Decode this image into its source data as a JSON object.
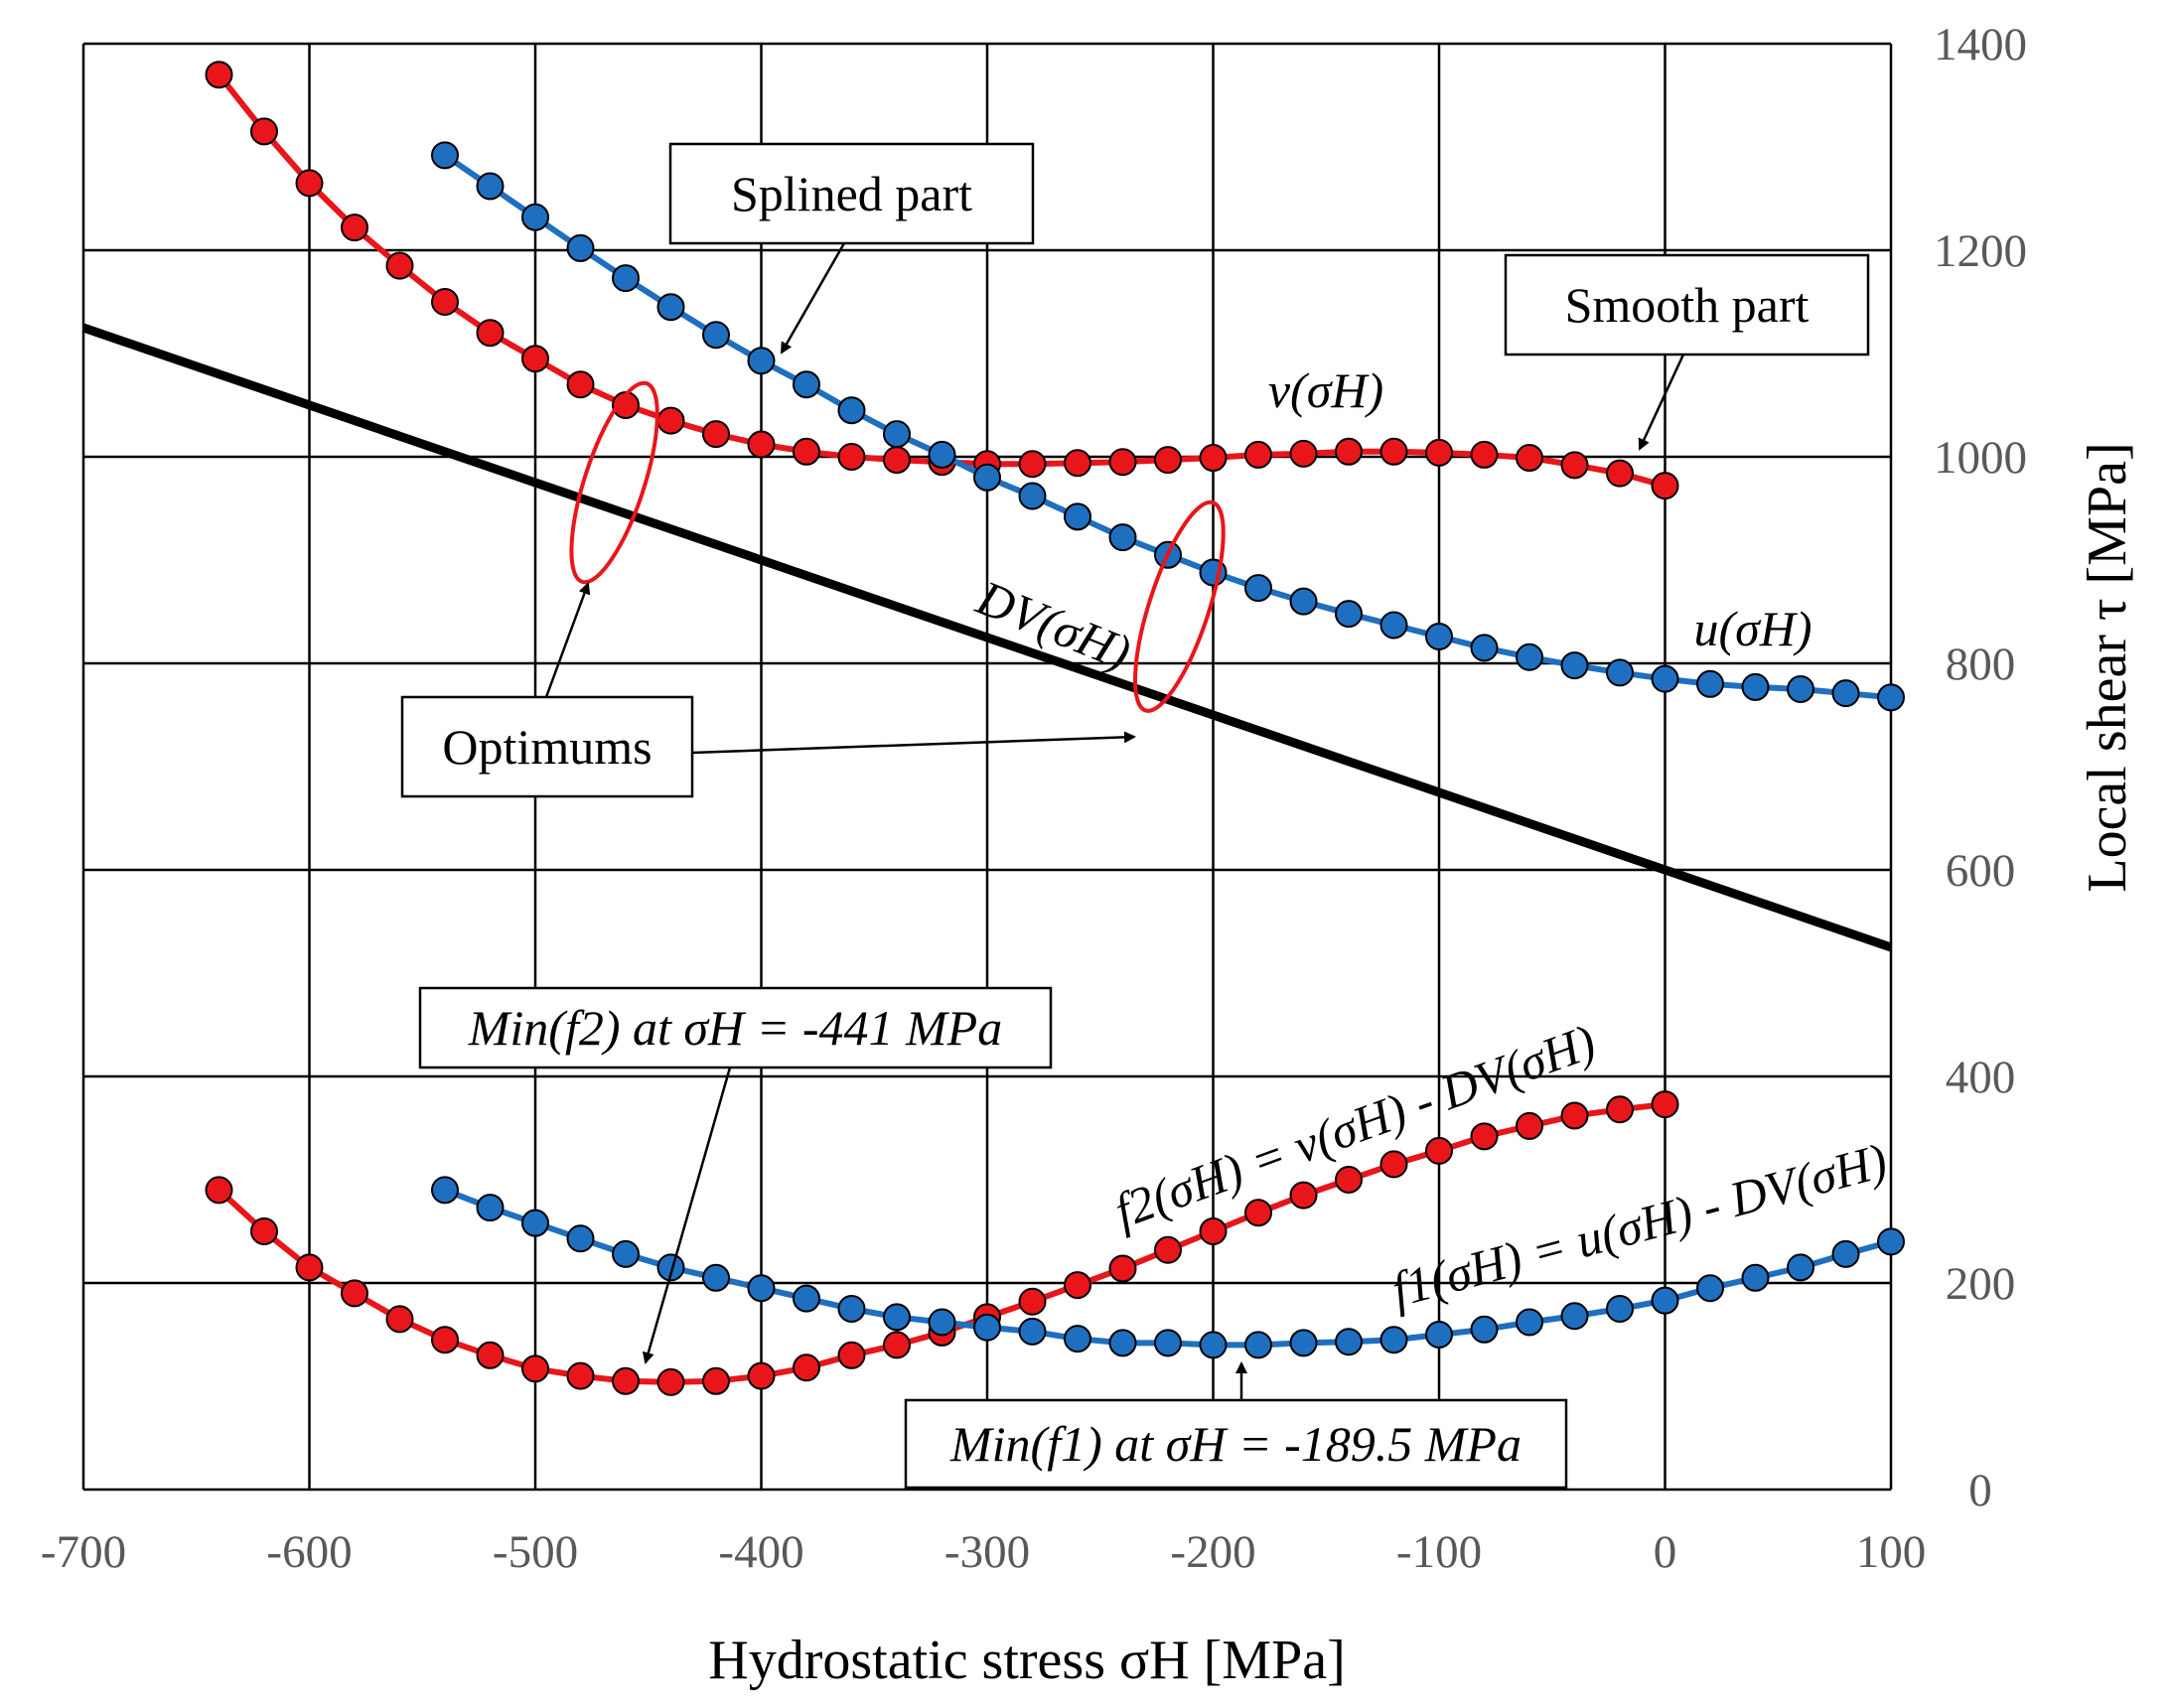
{
  "chart_data": {
    "type": "line",
    "xlabel": "Hydrostatic stress σH [MPa]",
    "ylabel": "Local shear τ [MPa]",
    "xlim": [
      -700,
      100
    ],
    "ylim": [
      0,
      1400
    ],
    "x_ticks": [
      "-700",
      "-600",
      "-500",
      "-400",
      "-300",
      "-200",
      "-100",
      "0",
      "100"
    ],
    "y_ticks": [
      "0",
      "200",
      "400",
      "600",
      "800",
      "1000",
      "1200",
      "1400"
    ],
    "grid": true,
    "colors": {
      "red": "#e8161b",
      "blue": "#1f6fc0",
      "line": "#000000",
      "ellipse": "#e8161b"
    },
    "series": [
      {
        "name": "v(σH)",
        "color": "red",
        "x": [
          -640,
          -620,
          -600,
          -580,
          -560,
          -540,
          -520,
          -500,
          -480,
          -460,
          -440,
          -420,
          -400,
          -380,
          -360,
          -340,
          -320,
          -300,
          -280,
          -260,
          -240,
          -220,
          -200,
          -180,
          -160,
          -140,
          -120,
          -100,
          -80,
          -60,
          -40,
          -20,
          0
        ],
        "y": [
          1370,
          1315,
          1265,
          1222,
          1185,
          1150,
          1120,
          1095,
          1070,
          1050,
          1035,
          1022,
          1012,
          1005,
          1000,
          997,
          995,
          993,
          993,
          994,
          995,
          997,
          999,
          1002,
          1003,
          1005,
          1005,
          1004,
          1002,
          999,
          992,
          984,
          972
        ]
      },
      {
        "name": "u(σH)",
        "color": "blue",
        "x": [
          -540,
          -520,
          -500,
          -480,
          -460,
          -440,
          -420,
          -400,
          -380,
          -360,
          -340,
          -320,
          -300,
          -280,
          -260,
          -240,
          -220,
          -200,
          -180,
          -160,
          -140,
          -120,
          -100,
          -80,
          -60,
          -40,
          -20,
          0,
          20,
          40,
          60,
          80,
          100
        ],
        "y": [
          1292,
          1262,
          1232,
          1202,
          1173,
          1145,
          1118,
          1093,
          1070,
          1045,
          1022,
          1002,
          980,
          962,
          942,
          922,
          905,
          888,
          873,
          860,
          848,
          837,
          826,
          815,
          806,
          798,
          791,
          785,
          780,
          777,
          775,
          771,
          767
        ]
      },
      {
        "name": "DV(σH)",
        "color": "line",
        "x": [
          -700,
          100
        ],
        "y": [
          1125,
          525
        ]
      },
      {
        "name": "f2(σH) = v(σH) - DV(σH)",
        "color": "red",
        "x": [
          -640,
          -620,
          -600,
          -580,
          -560,
          -540,
          -520,
          -500,
          -480,
          -460,
          -440,
          -420,
          -400,
          -380,
          -360,
          -340,
          -320,
          -300,
          -280,
          -260,
          -240,
          -220,
          -200,
          -180,
          -160,
          -140,
          -120,
          -100,
          -80,
          -60,
          -40,
          -20,
          0
        ],
        "y": [
          290,
          250,
          215,
          190,
          165,
          145,
          130,
          117,
          110,
          105,
          104,
          105,
          110,
          118,
          130,
          140,
          152,
          167,
          182,
          198,
          214,
          232,
          250,
          268,
          285,
          300,
          315,
          328,
          342,
          352,
          362,
          368,
          373
        ]
      },
      {
        "name": "f1(σH) = u(σH) - DV(σH)",
        "color": "blue",
        "x": [
          -540,
          -520,
          -500,
          -480,
          -460,
          -440,
          -420,
          -400,
          -380,
          -360,
          -340,
          -320,
          -300,
          -280,
          -260,
          -240,
          -220,
          -200,
          -180,
          -160,
          -140,
          -120,
          -100,
          -80,
          -60,
          -40,
          -20,
          0,
          20,
          40,
          60,
          80,
          100
        ],
        "y": [
          290,
          273,
          258,
          243,
          228,
          215,
          205,
          195,
          185,
          175,
          167,
          162,
          157,
          153,
          146,
          142,
          142,
          140,
          140,
          142,
          143,
          145,
          150,
          155,
          162,
          168,
          175,
          183,
          195,
          205,
          215,
          228,
          240
        ]
      }
    ],
    "annotations": {
      "splined_part": "Splined part",
      "smooth_part": "Smooth part",
      "optimums": "Optimums",
      "v_label": "v(σH)",
      "u_label": "u(σH)",
      "dv_label": "DV(σH)",
      "f2_label": "f2(σH) = v(σH) - DV(σH)",
      "f1_label": "f1(σH) = u(σH) - DV(σH)",
      "min_f2": "Min(f2) at σH = -441 MPa",
      "min_f1": "Min(f1) at σH = -189.5 MPa"
    }
  }
}
